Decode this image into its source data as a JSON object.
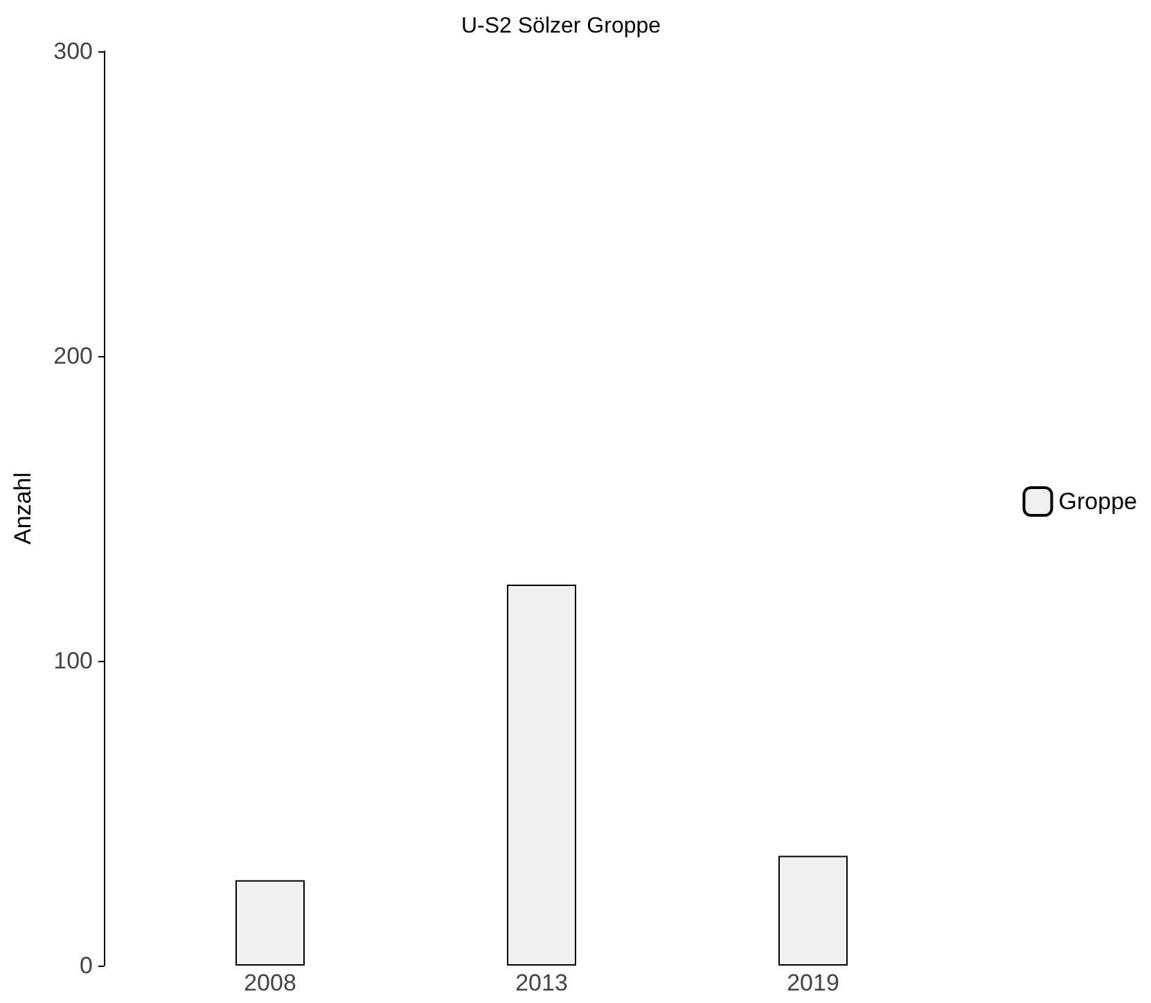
{
  "chart_data": {
    "type": "bar",
    "title": "U-S2 Sölzer Groppe",
    "ylabel": "Anzahl",
    "categories": [
      "2008",
      "2013",
      "2019"
    ],
    "series": [
      {
        "name": "Groppe",
        "color": "#efefef",
        "values": [
          28,
          125,
          36
        ]
      }
    ],
    "ylim": [
      0,
      300
    ],
    "yticks": [
      0,
      100,
      200,
      300
    ],
    "grid": false,
    "legend": "right"
  }
}
